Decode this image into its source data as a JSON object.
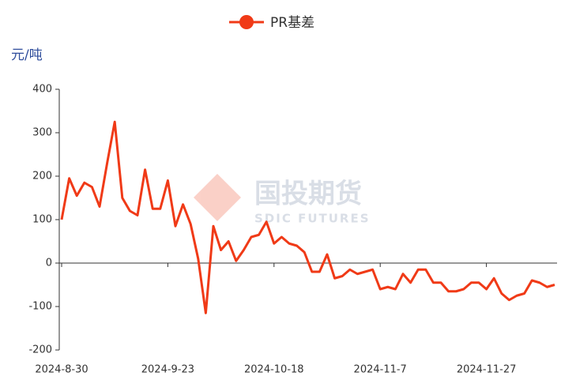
{
  "chart_data": {
    "type": "line",
    "y_unit": "元/吨",
    "watermark": {
      "name": "国投期货",
      "sub": "SDIC FUTURES"
    },
    "categories": [
      "2024-8-30",
      null,
      null,
      null,
      null,
      null,
      null,
      null,
      null,
      null,
      null,
      null,
      null,
      null,
      "2024-9-23",
      null,
      null,
      null,
      null,
      null,
      null,
      null,
      null,
      null,
      null,
      null,
      null,
      null,
      "2024-10-18",
      null,
      null,
      null,
      null,
      null,
      null,
      null,
      null,
      null,
      null,
      null,
      null,
      null,
      "2024-11-7",
      null,
      null,
      null,
      null,
      null,
      null,
      null,
      null,
      null,
      null,
      null,
      null,
      null,
      "2024-11-27",
      null,
      null,
      null,
      null,
      null,
      null,
      null,
      null,
      null
    ],
    "series": [
      {
        "name": "PR基差",
        "color": "#f03a17",
        "values": [
          100,
          195,
          155,
          185,
          175,
          130,
          230,
          325,
          150,
          120,
          110,
          215,
          125,
          125,
          190,
          85,
          135,
          90,
          10,
          -115,
          85,
          30,
          50,
          5,
          30,
          60,
          65,
          95,
          45,
          60,
          45,
          40,
          25,
          -20,
          -20,
          20,
          -35,
          -30,
          -15,
          -25,
          -20,
          -15,
          -60,
          -55,
          -60,
          -25,
          -45,
          -15,
          -15,
          -45,
          -45,
          -65,
          -65,
          -60,
          -45,
          -45,
          -60,
          -35,
          -70,
          -85,
          -75,
          -70,
          -40,
          -45,
          -55,
          -50
        ]
      }
    ],
    "ylim": [
      -200,
      400
    ],
    "yticks": [
      -200,
      -100,
      0,
      100,
      200,
      300,
      400
    ]
  }
}
